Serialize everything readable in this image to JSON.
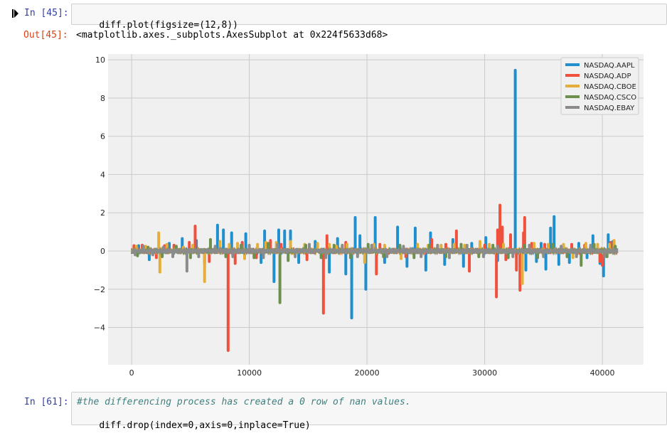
{
  "cells": {
    "plot_cell": {
      "in_prompt": "In [45]:",
      "code": "diff.plot(figsize=(12,8))",
      "out_prompt": "Out[45]:",
      "output_repr": "<matplotlib.axes._subplots.AxesSubplot at 0x224f5633d68>"
    },
    "drop_cell": {
      "in_prompt": "In [61]:",
      "comment": "#the differencing process has created a 0 row of nan values.",
      "code": "diff.drop(index=0,axis=0,inplace=True)"
    }
  },
  "chart_data": {
    "type": "line",
    "title": "",
    "xlabel": "",
    "ylabel": "",
    "xlim": [
      -2000,
      43500
    ],
    "ylim": [
      -5.95,
      10.3
    ],
    "xticks": [
      0,
      10000,
      20000,
      30000,
      40000
    ],
    "yticks": [
      -4,
      -2,
      0,
      2,
      4,
      6,
      8,
      10
    ],
    "ytick_labels": [
      "−4",
      "−2",
      "0",
      "2",
      "4",
      "6",
      "8",
      "10"
    ],
    "grid": true,
    "legend_position": "top-right",
    "series": [
      {
        "name": "NASDAQ.AAPL",
        "color": "#1f8fce",
        "spikes": [
          [
            600,
            0.28
          ],
          [
            1500,
            -0.45
          ],
          [
            3200,
            0.4
          ],
          [
            4300,
            0.65
          ],
          [
            5500,
            0.55
          ],
          [
            6200,
            -0.65
          ],
          [
            7300,
            1.35
          ],
          [
            7800,
            1.1
          ],
          [
            8500,
            0.95
          ],
          [
            9700,
            0.9
          ],
          [
            11000,
            -0.6
          ],
          [
            11300,
            1.05
          ],
          [
            12100,
            -1.6
          ],
          [
            12500,
            1.1
          ],
          [
            13000,
            1.05
          ],
          [
            13500,
            1.05
          ],
          [
            14200,
            -0.6
          ],
          [
            15600,
            0.5
          ],
          [
            16800,
            -1.1
          ],
          [
            17500,
            0.65
          ],
          [
            18200,
            -1.2
          ],
          [
            18700,
            -3.5
          ],
          [
            19000,
            1.75
          ],
          [
            19400,
            0.8
          ],
          [
            19900,
            -2.0
          ],
          [
            20700,
            1.75
          ],
          [
            21500,
            -0.6
          ],
          [
            22600,
            1.25
          ],
          [
            23400,
            -0.8
          ],
          [
            24100,
            1.2
          ],
          [
            25000,
            -1.0
          ],
          [
            25400,
            0.95
          ],
          [
            26600,
            -0.7
          ],
          [
            27300,
            0.6
          ],
          [
            28200,
            -0.8
          ],
          [
            28900,
            0.4
          ],
          [
            30100,
            0.7
          ],
          [
            31100,
            -0.5
          ],
          [
            31300,
            0.85
          ],
          [
            32600,
            9.45
          ],
          [
            33500,
            -1.0
          ],
          [
            34400,
            -0.55
          ],
          [
            34800,
            0.4
          ],
          [
            35200,
            -0.95
          ],
          [
            35600,
            1.2
          ],
          [
            35900,
            1.8
          ],
          [
            36300,
            -0.7
          ],
          [
            37200,
            -0.6
          ],
          [
            38000,
            0.4
          ],
          [
            38700,
            -0.35
          ],
          [
            39200,
            0.8
          ],
          [
            39800,
            -0.65
          ],
          [
            40100,
            -1.3
          ],
          [
            40500,
            0.85
          ],
          [
            40900,
            0.5
          ]
        ]
      },
      {
        "name": "NASDAQ.ADP",
        "color": "#f0513c",
        "spikes": [
          [
            200,
            0.28
          ],
          [
            900,
            0.3
          ],
          [
            2100,
            -0.35
          ],
          [
            2800,
            0.28
          ],
          [
            3600,
            0.3
          ],
          [
            4900,
            0.45
          ],
          [
            5400,
            1.3
          ],
          [
            6600,
            -0.55
          ],
          [
            8200,
            -5.2
          ],
          [
            8800,
            -0.65
          ],
          [
            9400,
            0.45
          ],
          [
            10600,
            -0.35
          ],
          [
            11800,
            0.55
          ],
          [
            12700,
            0.35
          ],
          [
            14900,
            -0.45
          ],
          [
            16300,
            -3.25
          ],
          [
            16600,
            0.8
          ],
          [
            18200,
            0.45
          ],
          [
            20800,
            -1.2
          ],
          [
            21100,
            0.35
          ],
          [
            23300,
            -0.3
          ],
          [
            25500,
            0.6
          ],
          [
            26700,
            0.35
          ],
          [
            27600,
            1.05
          ],
          [
            28700,
            -1.05
          ],
          [
            30000,
            0.3
          ],
          [
            31000,
            -2.4
          ],
          [
            31100,
            1.1
          ],
          [
            31300,
            2.4
          ],
          [
            31500,
            1.25
          ],
          [
            31800,
            -0.45
          ],
          [
            32200,
            0.85
          ],
          [
            32700,
            -1.0
          ],
          [
            33000,
            -2.05
          ],
          [
            33300,
            0.95
          ],
          [
            33400,
            1.75
          ],
          [
            34000,
            0.4
          ],
          [
            35100,
            0.35
          ],
          [
            37400,
            0.35
          ],
          [
            38500,
            0.3
          ],
          [
            39800,
            -0.55
          ],
          [
            40000,
            -0.75
          ],
          [
            40700,
            0.45
          ]
        ]
      },
      {
        "name": "NASDAQ.CBOE",
        "color": "#e5ae38",
        "spikes": [
          [
            400,
            0.25
          ],
          [
            1200,
            0.25
          ],
          [
            2300,
            0.95
          ],
          [
            2400,
            -1.1
          ],
          [
            3000,
            0.35
          ],
          [
            4400,
            0.2
          ],
          [
            5200,
            0.3
          ],
          [
            6200,
            -1.6
          ],
          [
            6700,
            0.4
          ],
          [
            7500,
            0.5
          ],
          [
            8300,
            0.35
          ],
          [
            9000,
            0.4
          ],
          [
            9600,
            -0.4
          ],
          [
            10700,
            0.35
          ],
          [
            11400,
            0.45
          ],
          [
            12300,
            0.45
          ],
          [
            13500,
            0.5
          ],
          [
            14700,
            0.35
          ],
          [
            15800,
            0.4
          ],
          [
            16800,
            0.35
          ],
          [
            17400,
            0.25
          ],
          [
            18300,
            0.35
          ],
          [
            19800,
            -0.6
          ],
          [
            20600,
            0.35
          ],
          [
            21500,
            0.3
          ],
          [
            22900,
            -0.4
          ],
          [
            24300,
            0.35
          ],
          [
            25200,
            0.3
          ],
          [
            26300,
            0.3
          ],
          [
            27400,
            0.35
          ],
          [
            28300,
            0.3
          ],
          [
            29600,
            0.5
          ],
          [
            30400,
            0.35
          ],
          [
            31600,
            0.35
          ],
          [
            33200,
            -1.7
          ],
          [
            34200,
            0.4
          ],
          [
            35400,
            0.35
          ],
          [
            36700,
            0.35
          ],
          [
            37500,
            -0.35
          ],
          [
            38600,
            0.4
          ],
          [
            39600,
            0.35
          ],
          [
            40600,
            0.35
          ],
          [
            41000,
            0.55
          ]
        ]
      },
      {
        "name": "NASDAQ.CSCO",
        "color": "#6d904f",
        "spikes": [
          [
            500,
            -0.25
          ],
          [
            1400,
            0.2
          ],
          [
            2600,
            -0.3
          ],
          [
            3800,
            0.25
          ],
          [
            5000,
            -0.35
          ],
          [
            6700,
            0.6
          ],
          [
            8000,
            -0.3
          ],
          [
            9300,
            0.3
          ],
          [
            10400,
            -0.35
          ],
          [
            11600,
            0.4
          ],
          [
            12600,
            -2.7
          ],
          [
            13300,
            -0.5
          ],
          [
            14800,
            0.3
          ],
          [
            16100,
            -0.35
          ],
          [
            17200,
            0.3
          ],
          [
            18600,
            -0.35
          ],
          [
            20100,
            0.35
          ],
          [
            21400,
            -0.3
          ],
          [
            22800,
            0.3
          ],
          [
            24000,
            -0.35
          ],
          [
            25300,
            0.3
          ],
          [
            26700,
            -0.3
          ],
          [
            28000,
            0.35
          ],
          [
            29500,
            -0.3
          ],
          [
            30700,
            0.3
          ],
          [
            32000,
            -0.35
          ],
          [
            33400,
            0.3
          ],
          [
            34500,
            -0.35
          ],
          [
            35800,
            0.35
          ],
          [
            37000,
            -0.3
          ],
          [
            38200,
            -0.75
          ],
          [
            39300,
            0.35
          ],
          [
            40400,
            -0.3
          ],
          [
            41100,
            0.25
          ]
        ]
      },
      {
        "name": "NASDAQ.EBAY",
        "color": "#8b8b8b",
        "spikes": [
          [
            300,
            -0.2
          ],
          [
            1000,
            0.25
          ],
          [
            1800,
            -0.2
          ],
          [
            2700,
            0.2
          ],
          [
            3500,
            -0.3
          ],
          [
            4700,
            -1.05
          ],
          [
            5700,
            -0.3
          ],
          [
            7100,
            0.25
          ],
          [
            8600,
            -0.3
          ],
          [
            10000,
            0.3
          ],
          [
            11200,
            -0.35
          ],
          [
            12400,
            0.35
          ],
          [
            13900,
            -0.3
          ],
          [
            15100,
            0.35
          ],
          [
            16500,
            -0.35
          ],
          [
            17900,
            0.3
          ],
          [
            19200,
            -0.3
          ],
          [
            20400,
            0.3
          ],
          [
            21700,
            -0.3
          ],
          [
            23100,
            0.25
          ],
          [
            24600,
            -0.3
          ],
          [
            26000,
            0.3
          ],
          [
            27000,
            -0.35
          ],
          [
            28500,
            0.3
          ],
          [
            29900,
            -0.3
          ],
          [
            31100,
            0.25
          ],
          [
            32400,
            -0.3
          ],
          [
            33800,
            0.3
          ],
          [
            35000,
            -0.3
          ],
          [
            36500,
            0.25
          ],
          [
            37800,
            -0.3
          ],
          [
            39000,
            0.3
          ],
          [
            40200,
            -0.3
          ],
          [
            41000,
            0.1
          ]
        ]
      }
    ]
  }
}
